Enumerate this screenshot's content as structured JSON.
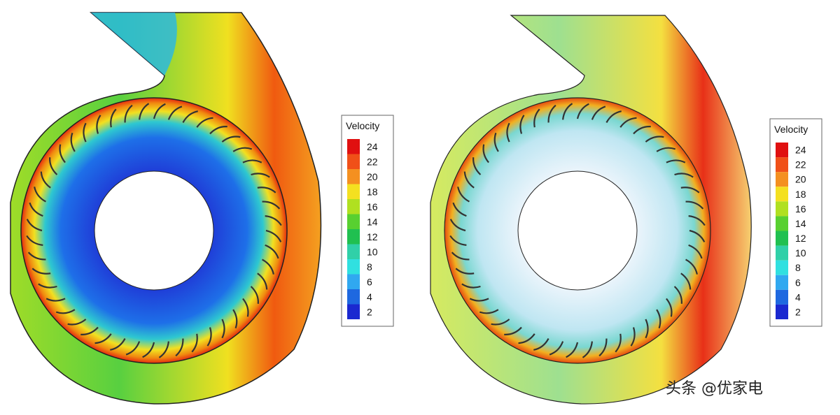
{
  "panels": [
    {
      "legend": {
        "title": "Velocity",
        "labels": [
          24,
          22,
          20,
          18,
          16,
          14,
          12,
          10,
          8,
          6,
          4,
          2
        ]
      }
    },
    {
      "legend": {
        "title": "Velocity",
        "labels": [
          24,
          22,
          20,
          18,
          16,
          14,
          12,
          10,
          8,
          6,
          4,
          2
        ]
      }
    }
  ],
  "watermark": "头条 @优家电"
}
